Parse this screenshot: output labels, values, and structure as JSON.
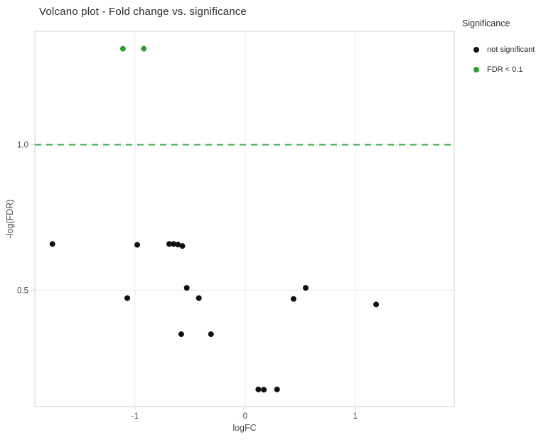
{
  "title": "Volcano plot - Fold change vs. significance",
  "colors": {
    "significant": "#2da12d",
    "not_significant": "#111111",
    "threshold_line": "#43ad4f",
    "grid": "#ebebeb",
    "panel_border": "#d9d9d9",
    "tick_mark": "#d0d0d0"
  },
  "legend": {
    "title": "Significance",
    "entries": [
      {
        "label": "not significant",
        "color": "#111111"
      },
      {
        "label": "FDR < 0.1",
        "color": "#2da12d"
      }
    ]
  },
  "chart_data": {
    "type": "scatter",
    "title": "Volcano plot - Fold change vs. significance",
    "xlabel": "logFC",
    "ylabel": "-log(FDR)",
    "xlim": [
      -1.91,
      1.9
    ],
    "ylim": [
      0.1,
      1.39
    ],
    "xticks": [
      -1,
      0,
      1
    ],
    "xtick_labels": [
      "-1",
      "0",
      "1"
    ],
    "yticks": [
      0.5,
      1.0
    ],
    "ytick_labels": [
      "0.5",
      "1.0"
    ],
    "grid": true,
    "legend_position": "top-right-outside",
    "threshold_line": {
      "y": 1.0,
      "style": "dashed"
    },
    "marker_radius": 4,
    "series": [
      {
        "name": "not significant",
        "color": "#111111",
        "points": [
          [
            -1.75,
            0.659
          ],
          [
            -0.98,
            0.656
          ],
          [
            -0.69,
            0.659
          ],
          [
            -0.65,
            0.659
          ],
          [
            -0.61,
            0.657
          ],
          [
            -0.57,
            0.652
          ],
          [
            -1.07,
            0.473
          ],
          [
            -0.53,
            0.508
          ],
          [
            -0.42,
            0.473
          ],
          [
            -0.58,
            0.349
          ],
          [
            -0.31,
            0.349
          ],
          [
            0.44,
            0.47
          ],
          [
            0.55,
            0.508
          ],
          [
            1.19,
            0.451
          ],
          [
            0.12,
            0.159
          ],
          [
            0.17,
            0.158
          ],
          [
            0.29,
            0.159
          ]
        ]
      },
      {
        "name": "FDR < 0.1",
        "color": "#2da12d",
        "points": [
          [
            -1.11,
            1.33
          ],
          [
            -0.92,
            1.33
          ]
        ]
      }
    ]
  }
}
